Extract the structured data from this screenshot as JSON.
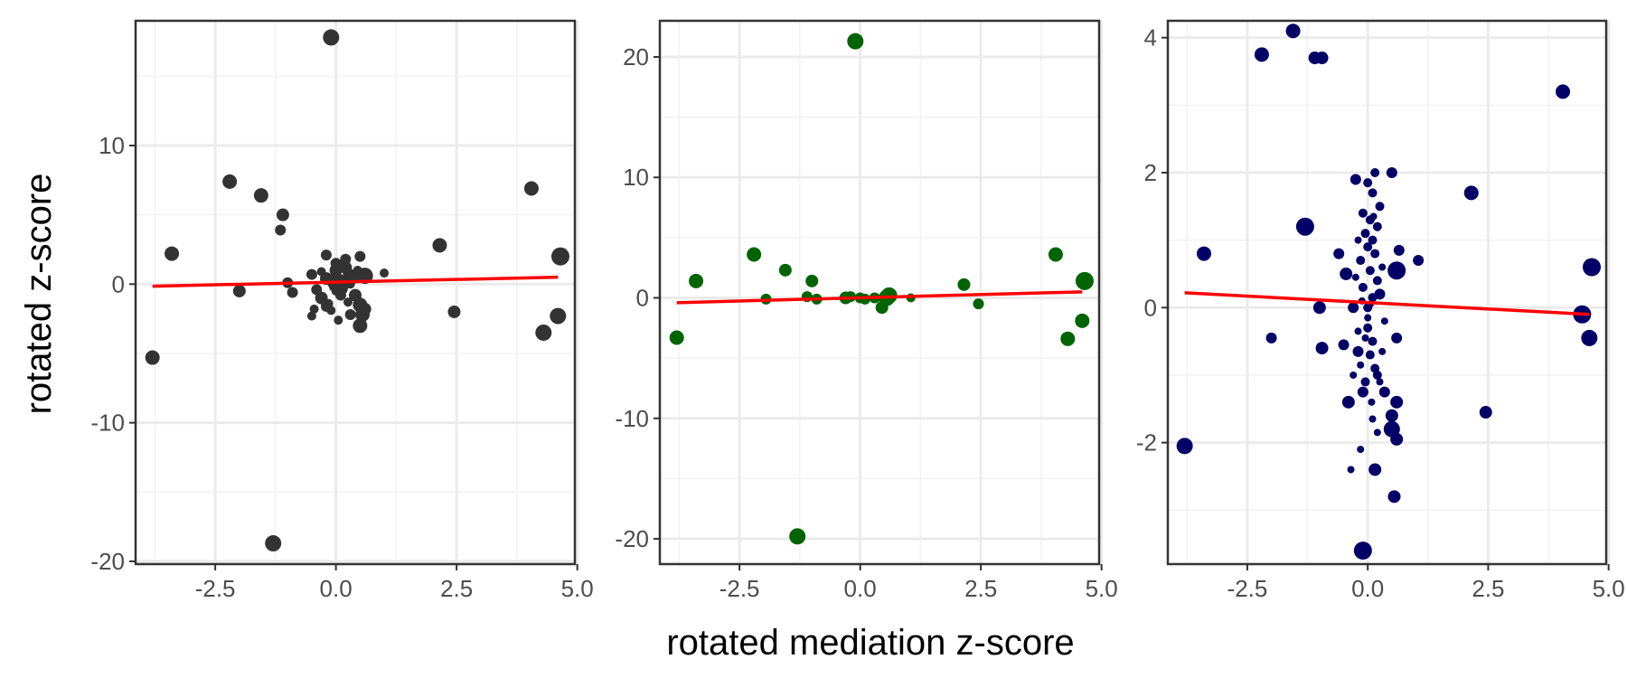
{
  "x_axis_title": "rotated mediation z-score",
  "y_axis_title": "rotated z-score",
  "chart_data": [
    {
      "type": "scatter",
      "color": "#333333",
      "fit_color": "#ff0000",
      "xlim": [
        -4.15,
        4.95
      ],
      "ylim": [
        -20.2,
        19.0
      ],
      "xticks": [
        -2.5,
        0.0,
        2.5,
        5.0
      ],
      "xtick_labels": [
        "-2.5",
        "0.0",
        "2.5",
        "5.0"
      ],
      "yticks": [
        -20,
        -10,
        0,
        10
      ],
      "ytick_labels": [
        "-20",
        "-10",
        "0",
        "10"
      ],
      "fit": {
        "x": [
          -3.8,
          4.6
        ],
        "y": [
          -0.15,
          0.5
        ]
      },
      "points": [
        [
          -0.1,
          17.8,
          9
        ],
        [
          -1.3,
          -18.7,
          9
        ],
        [
          -3.8,
          -5.3,
          8
        ],
        [
          -3.4,
          2.2,
          8
        ],
        [
          -2.2,
          7.4,
          8
        ],
        [
          -1.55,
          6.4,
          8
        ],
        [
          -1.1,
          5.0,
          7
        ],
        [
          -1.15,
          3.9,
          6
        ],
        [
          -2.0,
          -0.5,
          7
        ],
        [
          -1.0,
          0.1,
          6
        ],
        [
          -0.9,
          -0.6,
          6
        ],
        [
          2.15,
          2.8,
          8
        ],
        [
          2.45,
          -2.0,
          7
        ],
        [
          4.05,
          6.9,
          8
        ],
        [
          4.65,
          2.0,
          10
        ],
        [
          4.6,
          -2.3,
          9
        ],
        [
          4.3,
          -3.5,
          9
        ],
        [
          0.0,
          0.2,
          10
        ],
        [
          0.3,
          0.5,
          9
        ],
        [
          0.6,
          0.6,
          9
        ],
        [
          0.1,
          -0.3,
          8
        ],
        [
          -0.2,
          0.4,
          7
        ],
        [
          0.2,
          1.2,
          7
        ],
        [
          0.0,
          1.0,
          7
        ],
        [
          0.5,
          -1.5,
          8
        ],
        [
          0.55,
          -2.2,
          8
        ],
        [
          0.5,
          -3.0,
          8
        ],
        [
          0.4,
          -0.8,
          7
        ],
        [
          0.6,
          -1.8,
          7
        ],
        [
          -0.3,
          -1.0,
          7
        ],
        [
          -0.2,
          -1.6,
          6
        ],
        [
          0.3,
          -2.2,
          6
        ],
        [
          -0.4,
          -0.4,
          6
        ],
        [
          -0.5,
          0.7,
          6
        ],
        [
          0.1,
          -0.8,
          6
        ],
        [
          0.2,
          1.8,
          6
        ],
        [
          0.0,
          1.5,
          6
        ],
        [
          -0.2,
          2.1,
          6
        ],
        [
          0.5,
          2.0,
          6
        ],
        [
          1.0,
          0.8,
          5
        ],
        [
          0.05,
          -2.6,
          5
        ],
        [
          -0.1,
          -1.9,
          5
        ],
        [
          0.25,
          -1.3,
          5
        ],
        [
          -0.05,
          -0.2,
          5
        ],
        [
          0.3,
          0.0,
          5
        ],
        [
          0.15,
          0.3,
          5
        ],
        [
          -0.3,
          0.9,
          5
        ],
        [
          0.45,
          1.0,
          5
        ],
        [
          -0.15,
          -1.4,
          5
        ],
        [
          -0.45,
          -1.8,
          5
        ],
        [
          -0.5,
          -2.3,
          5
        ],
        [
          0.0,
          -0.5,
          5
        ]
      ]
    },
    {
      "type": "scatter",
      "color": "#006400",
      "fit_color": "#ff0000",
      "xlim": [
        -4.15,
        4.95
      ],
      "ylim": [
        -22.1,
        23.0
      ],
      "xticks": [
        -2.5,
        0.0,
        2.5,
        5.0
      ],
      "xtick_labels": [
        "-2.5",
        "0.0",
        "2.5",
        "5.0"
      ],
      "yticks": [
        -20,
        -10,
        0,
        10,
        20
      ],
      "ytick_labels": [
        "-20",
        "-10",
        "0",
        "10",
        "20"
      ],
      "fit": {
        "x": [
          -3.8,
          4.6
        ],
        "y": [
          -0.4,
          0.5
        ]
      },
      "points": [
        [
          -0.1,
          21.3,
          9
        ],
        [
          -1.3,
          -19.8,
          9
        ],
        [
          -3.8,
          -3.3,
          8
        ],
        [
          -3.4,
          1.4,
          8
        ],
        [
          -2.2,
          3.6,
          8
        ],
        [
          -1.55,
          2.3,
          7
        ],
        [
          -1.0,
          1.4,
          7
        ],
        [
          -1.95,
          -0.1,
          6
        ],
        [
          -1.1,
          0.1,
          6
        ],
        [
          -0.9,
          -0.1,
          6
        ],
        [
          -0.3,
          0.0,
          7
        ],
        [
          -0.2,
          0.1,
          6
        ],
        [
          0.0,
          0.0,
          6
        ],
        [
          0.1,
          -0.1,
          6
        ],
        [
          0.3,
          0.0,
          6
        ],
        [
          0.55,
          0.0,
          9
        ],
        [
          0.6,
          0.2,
          9
        ],
        [
          0.45,
          -0.8,
          7
        ],
        [
          1.05,
          0.0,
          5
        ],
        [
          2.15,
          1.1,
          7
        ],
        [
          2.45,
          -0.5,
          6
        ],
        [
          4.05,
          3.6,
          8
        ],
        [
          4.65,
          1.4,
          10
        ],
        [
          4.6,
          -1.9,
          8
        ],
        [
          4.3,
          -3.4,
          8
        ]
      ]
    },
    {
      "type": "scatter",
      "color": "#000066",
      "fit_color": "#ff0000",
      "xlim": [
        -4.15,
        4.95
      ],
      "ylim": [
        -3.8,
        4.25
      ],
      "xticks": [
        -2.5,
        0.0,
        2.5,
        5.0
      ],
      "xtick_labels": [
        "-2.5",
        "0.0",
        "2.5",
        "5.0"
      ],
      "yticks": [
        -2,
        0,
        2,
        4
      ],
      "ytick_labels": [
        "-2",
        "0",
        "2",
        "4"
      ],
      "fit": {
        "x": [
          -3.8,
          4.6
        ],
        "y": [
          0.22,
          -0.1
        ]
      },
      "points": [
        [
          -1.55,
          4.1,
          8
        ],
        [
          -2.2,
          3.75,
          8
        ],
        [
          -1.1,
          3.7,
          7
        ],
        [
          -0.95,
          3.7,
          7
        ],
        [
          4.05,
          3.2,
          8
        ],
        [
          2.15,
          1.7,
          8
        ],
        [
          -1.3,
          1.2,
          10
        ],
        [
          -3.4,
          0.8,
          8
        ],
        [
          0.6,
          0.55,
          10
        ],
        [
          4.65,
          0.6,
          10
        ],
        [
          4.45,
          -0.1,
          10
        ],
        [
          4.6,
          -0.45,
          9
        ],
        [
          2.45,
          -1.55,
          7
        ],
        [
          -3.8,
          -2.05,
          9
        ],
        [
          -0.1,
          -3.6,
          10
        ],
        [
          0.55,
          -2.8,
          7
        ],
        [
          0.5,
          -1.8,
          9
        ],
        [
          0.5,
          -1.6,
          7
        ],
        [
          0.6,
          -1.95,
          7
        ],
        [
          0.6,
          -1.4,
          7
        ],
        [
          0.6,
          -0.45,
          6
        ],
        [
          0.15,
          -2.4,
          7
        ],
        [
          -0.4,
          -1.4,
          7
        ],
        [
          -0.1,
          -1.25,
          6
        ],
        [
          -2.0,
          -0.45,
          6
        ],
        [
          -0.95,
          -0.6,
          7
        ],
        [
          -1.0,
          0.0,
          7
        ],
        [
          -0.45,
          0.5,
          7
        ],
        [
          -0.6,
          0.8,
          6
        ],
        [
          -0.3,
          0.0,
          6
        ],
        [
          -0.25,
          1.9,
          6
        ],
        [
          0.5,
          2.0,
          6
        ],
        [
          0.65,
          0.85,
          6
        ],
        [
          1.05,
          0.7,
          6
        ],
        [
          0.25,
          0.2,
          6
        ],
        [
          -0.5,
          -0.55,
          6
        ],
        [
          -0.2,
          -0.65,
          6
        ],
        [
          0.35,
          -1.25,
          6
        ],
        [
          -0.35,
          -2.4,
          4
        ],
        [
          -0.15,
          -2.1,
          4
        ],
        [
          0.2,
          -1.85,
          4
        ],
        [
          0.1,
          -1.65,
          4
        ],
        [
          0.0,
          -0.3,
          5
        ],
        [
          0.1,
          -0.5,
          5
        ],
        [
          0.05,
          -0.7,
          5
        ],
        [
          0.15,
          -0.9,
          5
        ],
        [
          -0.05,
          -1.1,
          5
        ],
        [
          0.2,
          -1.0,
          5
        ],
        [
          0.0,
          0.0,
          5
        ],
        [
          0.1,
          0.15,
          5
        ],
        [
          -0.1,
          0.3,
          5
        ],
        [
          0.2,
          0.4,
          5
        ],
        [
          0.05,
          0.55,
          5
        ],
        [
          -0.15,
          0.7,
          5
        ],
        [
          0.15,
          0.8,
          5
        ],
        [
          0.0,
          0.9,
          5
        ],
        [
          0.1,
          1.0,
          5
        ],
        [
          -0.05,
          1.1,
          5
        ],
        [
          0.2,
          1.2,
          5
        ],
        [
          0.05,
          1.3,
          5
        ],
        [
          -0.1,
          1.4,
          5
        ],
        [
          0.25,
          1.5,
          5
        ],
        [
          0.1,
          1.7,
          5
        ],
        [
          0.0,
          1.85,
          5
        ],
        [
          0.15,
          2.0,
          5
        ],
        [
          -0.2,
          1.0,
          4
        ],
        [
          0.3,
          0.6,
          4
        ],
        [
          -0.25,
          0.45,
          4
        ],
        [
          0.35,
          -0.2,
          4
        ],
        [
          -0.2,
          -0.35,
          4
        ],
        [
          0.3,
          -0.65,
          4
        ],
        [
          -0.15,
          -0.85,
          4
        ],
        [
          0.25,
          -1.1,
          4
        ],
        [
          -0.3,
          -1.0,
          4
        ],
        [
          0.0,
          -0.15,
          4
        ],
        [
          0.05,
          0.05,
          4
        ],
        [
          -0.05,
          -0.45,
          4
        ],
        [
          0.12,
          1.35,
          4
        ],
        [
          -0.12,
          0.1,
          4
        ],
        [
          0.08,
          -1.4,
          4
        ]
      ]
    }
  ]
}
